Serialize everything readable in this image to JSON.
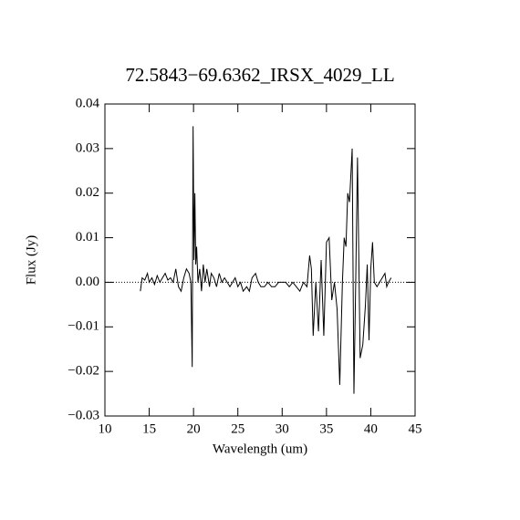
{
  "chart_data": {
    "type": "line",
    "title": "72.5843−69.6362_IRSX_4029_LL",
    "x_label": "Wavelength (um)",
    "y_label": "Flux (Jy)",
    "color": "#000000",
    "xlim": [
      10,
      45
    ],
    "ylim": [
      -0.03,
      0.04
    ],
    "xticks": [
      10,
      15,
      20,
      25,
      30,
      35,
      40,
      45
    ],
    "yticks": [
      {
        "value": -0.03,
        "label": "−0.03"
      },
      {
        "value": -0.02,
        "label": "−0.02"
      },
      {
        "value": -0.01,
        "label": "−0.01"
      },
      {
        "value": 0,
        "label": "0.00"
      },
      {
        "value": 0.01,
        "label": "0.01"
      },
      {
        "value": 0.02,
        "label": "0.02"
      },
      {
        "value": 0.03,
        "label": "0.03"
      },
      {
        "value": 0.04,
        "label": "0.04"
      }
    ],
    "x": [
      14.0,
      14.2,
      14.5,
      14.8,
      15.0,
      15.3,
      15.6,
      15.9,
      16.2,
      16.5,
      16.8,
      17.1,
      17.4,
      17.7,
      18.0,
      18.3,
      18.6,
      18.9,
      19.2,
      19.5,
      19.7,
      19.85,
      19.95,
      20.05,
      20.15,
      20.25,
      20.35,
      20.5,
      20.7,
      20.9,
      21.1,
      21.3,
      21.5,
      21.8,
      22.0,
      22.3,
      22.6,
      22.9,
      23.2,
      23.5,
      23.8,
      24.1,
      24.4,
      24.7,
      25.0,
      25.3,
      25.6,
      26.0,
      26.3,
      26.6,
      27.0,
      27.3,
      27.6,
      28.0,
      28.4,
      28.8,
      29.2,
      29.6,
      30.0,
      30.4,
      30.8,
      31.2,
      31.6,
      32.0,
      32.4,
      32.8,
      33.1,
      33.3,
      33.5,
      33.8,
      34.1,
      34.4,
      34.7,
      35.0,
      35.3,
      35.6,
      35.9,
      36.2,
      36.5,
      36.8,
      37.0,
      37.2,
      37.4,
      37.6,
      37.9,
      38.1,
      38.3,
      38.5,
      38.8,
      39.1,
      39.4,
      39.6,
      39.8,
      40.0,
      40.2,
      40.4,
      40.7,
      41.0,
      41.3,
      41.6,
      41.8,
      42.0,
      42.3
    ],
    "values": [
      -0.002,
      0.001,
      0.0005,
      0.002,
      0.0,
      0.001,
      -0.0005,
      0.0015,
      0.0,
      0.001,
      0.002,
      0.0005,
      0.001,
      0.0,
      0.003,
      -0.001,
      -0.002,
      0.001,
      0.003,
      0.002,
      0.0,
      -0.019,
      0.035,
      0.005,
      0.02,
      0.004,
      0.008,
      0.0,
      0.003,
      -0.002,
      0.004,
      0.0,
      0.003,
      -0.001,
      0.002,
      0.001,
      -0.001,
      0.002,
      0.0,
      0.001,
      0.0,
      -0.001,
      0.0,
      0.001,
      -0.001,
      0.0,
      -0.002,
      -0.001,
      -0.002,
      0.001,
      0.002,
      0.0,
      -0.001,
      -0.001,
      0.0,
      -0.001,
      -0.001,
      0.0,
      0.0,
      0.0,
      -0.001,
      0.0,
      -0.001,
      -0.002,
      0.0,
      -0.001,
      0.006,
      0.003,
      -0.012,
      0.0,
      -0.011,
      0.005,
      -0.012,
      0.009,
      0.01,
      -0.004,
      0.0,
      -0.006,
      -0.023,
      0.0,
      0.01,
      0.008,
      0.02,
      0.018,
      0.03,
      -0.025,
      0.0,
      0.028,
      -0.017,
      -0.014,
      -0.005,
      0.004,
      -0.013,
      0.003,
      0.009,
      0.0,
      -0.001,
      0.0,
      0.001,
      0.002,
      -0.001,
      0.0,
      0.001
    ]
  }
}
